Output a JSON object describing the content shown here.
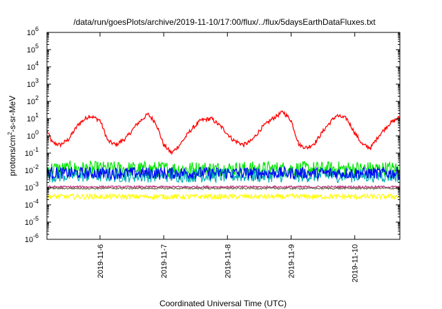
{
  "chart_data": {
    "type": "line",
    "title": "/data/run/goesPlots/archive/2019-11-10/17:00/flux/../flux/5daysEarthDataFluxes.txt",
    "xlabel": "Coordinated Universal Time (UTC)",
    "ylabel": "protons/cm²-s-sr-MeV",
    "ylabel_parts": {
      "prefix": "protons/cm",
      "sup": "2",
      "suffix": "-s-sr-MeV"
    },
    "yscale": "log",
    "ylim": [
      1e-06,
      1000000.0
    ],
    "y_ticks": [
      {
        "value": 1e-06,
        "base": "10",
        "exp": "-6"
      },
      {
        "value": 1e-05,
        "base": "10",
        "exp": "-5"
      },
      {
        "value": 0.0001,
        "base": "10",
        "exp": "-4"
      },
      {
        "value": 0.001,
        "base": "10",
        "exp": "-3"
      },
      {
        "value": 0.01,
        "base": "10",
        "exp": "-2"
      },
      {
        "value": 0.1,
        "base": "10",
        "exp": "-1"
      },
      {
        "value": 1.0,
        "base": "10",
        "exp": "0"
      },
      {
        "value": 10.0,
        "base": "10",
        "exp": "1"
      },
      {
        "value": 100.0,
        "base": "10",
        "exp": "2"
      },
      {
        "value": 1000.0,
        "base": "10",
        "exp": "3"
      },
      {
        "value": 10000.0,
        "base": "10",
        "exp": "4"
      },
      {
        "value": 100000.0,
        "base": "10",
        "exp": "5"
      },
      {
        "value": 1000000.0,
        "base": "10",
        "exp": "6"
      }
    ],
    "xlim": [
      "2019-11-05 04:00",
      "2019-11-10 17:00"
    ],
    "x_ticks": [
      {
        "label": "2019-11-6",
        "value": "2019-11-06 00:00"
      },
      {
        "label": "2019-11-7",
        "value": "2019-11-07 00:00"
      },
      {
        "label": "2019-11-8",
        "value": "2019-11-08 00:00"
      },
      {
        "label": "2019-11-9",
        "value": "2019-11-09 00:00"
      },
      {
        "label": "2019-11-10",
        "value": "2019-11-10 00:00"
      }
    ],
    "grid": false,
    "series": [
      {
        "color": "#ff0000",
        "times": [
          "2019-11-05 04:00",
          "2019-11-05 06:00",
          "2019-11-05 09:00",
          "2019-11-05 12:00",
          "2019-11-05 16:00",
          "2019-11-05 20:00",
          "2019-11-06 00:00",
          "2019-11-06 03:00",
          "2019-11-06 06:00",
          "2019-11-06 10:00",
          "2019-11-06 14:00",
          "2019-11-06 18:00",
          "2019-11-06 21:00",
          "2019-11-07 00:00",
          "2019-11-07 03:00",
          "2019-11-07 06:00",
          "2019-11-07 10:00",
          "2019-11-07 14:00",
          "2019-11-07 18:00",
          "2019-11-07 22:00",
          "2019-11-08 02:00",
          "2019-11-08 06:00",
          "2019-11-08 09:00",
          "2019-11-08 13:00",
          "2019-11-08 17:00",
          "2019-11-08 21:00",
          "2019-11-09 00:00",
          "2019-11-09 03:00",
          "2019-11-09 06:00",
          "2019-11-09 09:00",
          "2019-11-09 13:00",
          "2019-11-09 17:00",
          "2019-11-09 21:00",
          "2019-11-10 00:00",
          "2019-11-10 03:00",
          "2019-11-10 06:00",
          "2019-11-10 09:00",
          "2019-11-10 13:00",
          "2019-11-10 17:00"
        ],
        "values": [
          2,
          0.4,
          0.3,
          0.6,
          5,
          15,
          8,
          0.5,
          0.3,
          0.8,
          5,
          18,
          6,
          0.3,
          0.1,
          0.3,
          2,
          8,
          10,
          3,
          0.6,
          0.3,
          0.5,
          3,
          10,
          25,
          8,
          0.3,
          0.2,
          0.4,
          3,
          15,
          10,
          1.5,
          0.3,
          0.2,
          1,
          5,
          12
        ],
        "noise": 0.12
      },
      {
        "color": "#00e600",
        "times": [
          "2019-11-05 04:00",
          "2019-11-10 17:00"
        ],
        "values": [
          0.012,
          0.012
        ],
        "noise": 0.45
      },
      {
        "color": "#00b0b0",
        "times": [
          "2019-11-05 04:00",
          "2019-11-10 17:00"
        ],
        "values": [
          0.005,
          0.005
        ],
        "noise": 0.4
      },
      {
        "color": "#0000ff",
        "times": [
          "2019-11-05 04:00",
          "2019-11-10 17:00"
        ],
        "values": [
          0.007,
          0.007
        ],
        "noise": 0.35
      },
      {
        "color": "#ffff00",
        "times": [
          "2019-11-05 04:00",
          "2019-11-10 17:00"
        ],
        "values": [
          0.0003,
          0.0003
        ],
        "noise": 0.15
      },
      {
        "color": "#c03080",
        "times": [
          "2019-11-05 04:00",
          "2019-11-10 17:00"
        ],
        "values": [
          0.0011,
          0.0011
        ],
        "noise": 0.06
      },
      {
        "color": "#707050",
        "times": [
          "2019-11-05 04:00",
          "2019-11-10 17:00"
        ],
        "values": [
          0.0009,
          0.0009
        ],
        "noise": 0.05
      }
    ]
  }
}
